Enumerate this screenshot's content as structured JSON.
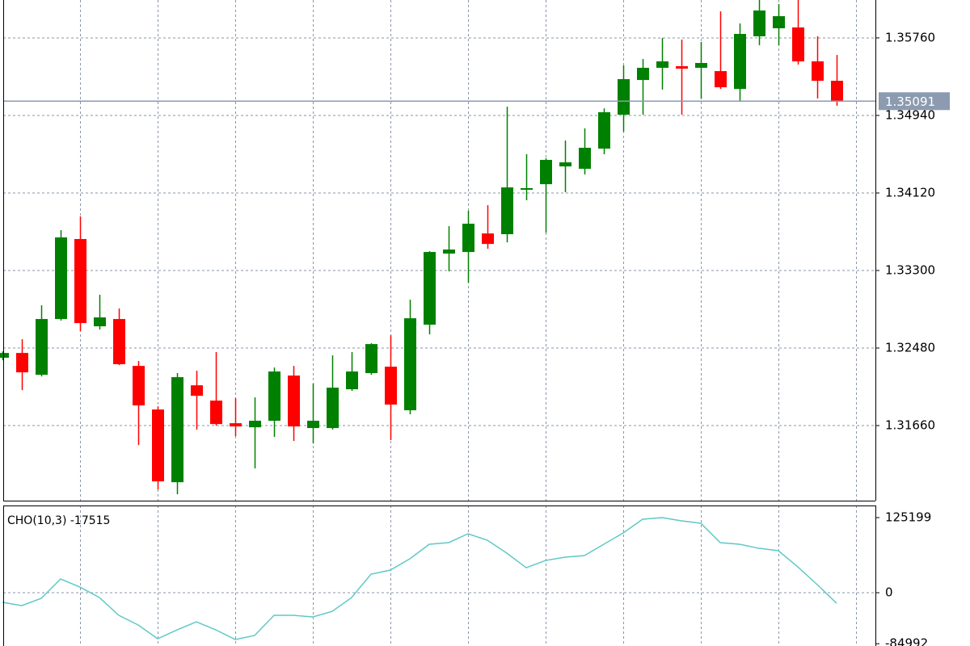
{
  "chart_data": [
    {
      "type": "candlestick",
      "open": [
        1.32377,
        1.32428,
        1.32197,
        1.32787,
        1.33633,
        1.3271,
        1.32787,
        1.32291,
        1.3183,
        1.31061,
        1.32086,
        1.31924,
        1.31685,
        1.31642,
        1.31711,
        1.32189,
        1.31634,
        1.31634,
        1.32044,
        1.32215,
        1.32283,
        1.31822,
        1.32727,
        1.33479,
        1.33496,
        1.33692,
        1.33684,
        1.34154,
        1.34213,
        1.34401,
        1.34376,
        1.34589,
        1.34948,
        1.35315,
        1.35444,
        1.35461,
        1.35444,
        1.35409,
        1.3522,
        1.35777,
        1.35862,
        1.35871,
        1.35512,
        1.35307
      ],
      "high": [
        1.32445,
        1.32573,
        1.32932,
        1.33727,
        1.33872,
        1.33043,
        1.32898,
        1.32343,
        1.31864,
        1.32215,
        1.3224,
        1.32437,
        1.3195,
        1.31958,
        1.32274,
        1.32291,
        1.32104,
        1.32402,
        1.32437,
        1.32531,
        1.32616,
        1.32992,
        1.33504,
        1.33769,
        1.33932,
        1.33991,
        1.35033,
        1.3453,
        1.34487,
        1.34675,
        1.34803,
        1.35015,
        1.35469,
        1.35537,
        1.3576,
        1.35742,
        1.35717,
        1.36041,
        1.35913,
        1.36161,
        1.36118,
        1.36161,
        1.35777,
        1.3558
      ],
      "low": [
        1.32351,
        1.32035,
        1.3218,
        1.3277,
        1.32659,
        1.32676,
        1.323,
        1.31454,
        1.30985,
        1.30933,
        1.31617,
        1.31659,
        1.31548,
        1.31207,
        1.3154,
        1.31497,
        1.31471,
        1.31617,
        1.32027,
        1.32197,
        1.31506,
        1.31779,
        1.32625,
        1.33291,
        1.33171,
        1.3353,
        1.33598,
        1.34043,
        1.33701,
        1.34128,
        1.34316,
        1.3453,
        1.34769,
        1.34948,
        1.35213,
        1.34948,
        1.35119,
        1.3522,
        1.35085,
        1.35683,
        1.35683,
        1.35478,
        1.35119,
        1.35042
      ],
      "close": [
        1.32428,
        1.32223,
        1.32787,
        1.3365,
        1.32744,
        1.32804,
        1.32309,
        1.31873,
        1.3107,
        1.32172,
        1.31975,
        1.31676,
        1.31651,
        1.31711,
        1.32232,
        1.31651,
        1.31711,
        1.32061,
        1.32232,
        1.32522,
        1.31882,
        1.32795,
        1.33496,
        1.33522,
        1.33795,
        1.33581,
        1.34179,
        1.34171,
        1.3447,
        1.34444,
        1.34598,
        1.34974,
        1.35324,
        1.35444,
        1.35512,
        1.35435,
        1.35495,
        1.35238,
        1.35802,
        1.3605,
        1.3599,
        1.35512,
        1.35307,
        1.35091
      ],
      "up_color": "#008000",
      "down_color": "#ff0000",
      "ylim": [
        1.30866,
        1.36161
      ],
      "yticks": [
        {
          "value": 1.3576,
          "label": "1.35760"
        },
        {
          "value": 1.3494,
          "label": "1.34940"
        },
        {
          "value": 1.3412,
          "label": "1.34120"
        },
        {
          "value": 1.333,
          "label": "1.33300"
        },
        {
          "value": 1.3248,
          "label": "1.32480"
        },
        {
          "value": 1.3166,
          "label": "1.31660"
        }
      ],
      "last_price": {
        "value": 1.35091,
        "label": "1.35091"
      },
      "last_price_color": "#8c9bb0",
      "grid": true
    },
    {
      "type": "line",
      "title": "CHO(10,3) -17515",
      "values": [
        -16000,
        -21500,
        -9400,
        22900,
        9400,
        -8000,
        -37700,
        -53800,
        -76700,
        -61900,
        -48500,
        -61900,
        -78000,
        -71300,
        -37700,
        -37700,
        -40400,
        -31000,
        -8000,
        31000,
        37700,
        56500,
        80800,
        83500,
        98300,
        87500,
        66000,
        41700,
        53800,
        59200,
        61900,
        80800,
        99600,
        122500,
        125199,
        119800,
        115800,
        83500,
        80800,
        74000,
        70000,
        43000,
        13500,
        -17515
      ],
      "color": "#5fc8c8",
      "ylim": [
        -88800,
        145400
      ],
      "yticks": [
        125199,
        0,
        -84992
      ],
      "grid": true
    }
  ]
}
